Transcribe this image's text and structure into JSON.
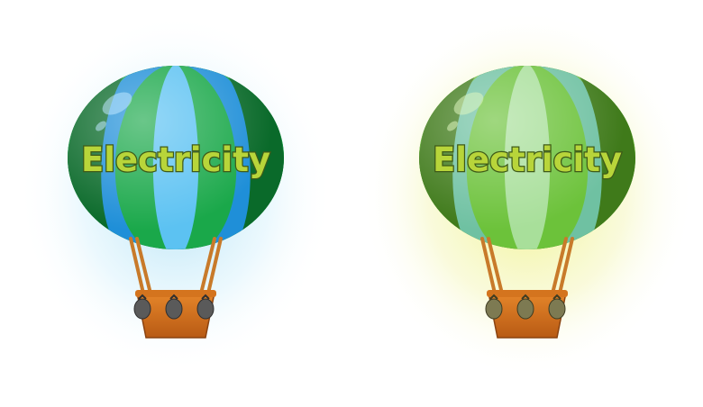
{
  "balloons": [
    {
      "label": "Electricity",
      "variant": "blue-green",
      "glow_color": "#9ad7f0",
      "stripe_dark": "#0a6a2a",
      "stripe_green": "#1aa84a",
      "stripe_blue": "#1f8fd8",
      "stripe_light": "#5cc2f2",
      "highlight": "#bfe8ff",
      "text_fill": "#b8d53a",
      "text_stroke": "#3e5a18"
    },
    {
      "label": "Electricity",
      "variant": "yellow-glow",
      "glow_color": "#eef08a",
      "stripe_dark": "#3f7a1a",
      "stripe_green": "#6cc23a",
      "stripe_blue": "#6fc1a2",
      "stripe_light": "#a8df9a",
      "highlight": "#dff6c0",
      "text_fill": "#b8d53a",
      "text_stroke": "#3e5a18"
    }
  ]
}
